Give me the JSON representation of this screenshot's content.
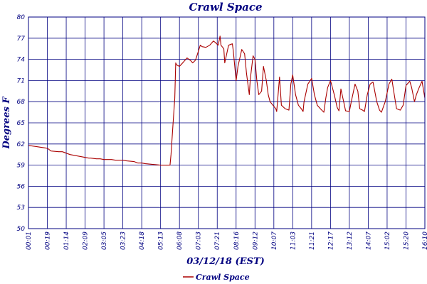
{
  "chart_data": {
    "type": "line",
    "title": "Crawl Space",
    "xlabel": "03/12/18 (EST)",
    "ylabel": "Degrees F",
    "ylim": [
      50,
      80
    ],
    "yticks": [
      50,
      53,
      56,
      59,
      62,
      65,
      68,
      71,
      74,
      77,
      80
    ],
    "xticks": [
      "00:01",
      "00:19",
      "01:14",
      "02:09",
      "03:05",
      "03:23",
      "04:18",
      "05:13",
      "06:08",
      "07:03",
      "07:21",
      "08:16",
      "09:12",
      "10:07",
      "11:03",
      "11:21",
      "12:17",
      "13:12",
      "14:07",
      "15:02",
      "15:20",
      "16:10"
    ],
    "grid": true,
    "legend_position": "bottom",
    "colors": {
      "line": "#aa0000",
      "grid": "#000080",
      "text": "#000080",
      "background": "#ffffff"
    },
    "series": [
      {
        "name": "Crawl Space",
        "x": [
          0.0,
          0.5,
          1.0,
          1.2,
          1.6,
          1.8,
          2.0,
          2.2,
          2.6,
          2.8,
          3.2,
          3.3,
          3.6,
          3.8,
          4.0,
          4.4,
          4.6,
          5.0,
          5.2,
          5.6,
          5.8,
          6.0,
          6.2,
          6.6,
          7.0,
          7.2,
          7.5,
          7.55,
          7.65,
          7.75,
          7.8,
          7.85,
          8.0,
          8.2,
          8.4,
          8.6,
          8.7,
          8.85,
          8.9,
          9.1,
          9.2,
          9.4,
          9.6,
          9.8,
          9.9,
          10.05,
          10.15,
          10.2,
          10.35,
          10.4,
          10.6,
          10.8,
          10.85,
          11.0,
          11.1,
          11.3,
          11.45,
          11.55,
          11.7,
          11.75,
          11.9,
          12.0,
          12.1,
          12.2,
          12.35,
          12.45,
          12.6,
          12.7,
          12.8,
          12.95,
          13.1,
          13.15,
          13.3,
          13.4,
          13.6,
          13.8,
          13.9,
          14.0,
          14.15,
          14.3,
          14.45,
          14.55,
          14.6,
          14.8,
          15.0,
          15.15,
          15.3,
          15.5,
          15.65,
          15.75,
          15.85,
          16.0,
          16.2,
          16.35,
          16.45,
          16.55,
          16.7,
          16.8,
          17.0,
          17.1,
          17.3,
          17.45,
          17.55,
          17.7,
          17.8,
          17.95,
          18.1,
          18.25,
          18.45,
          18.6,
          18.7,
          18.9,
          19.1,
          19.25,
          19.35,
          19.5,
          19.7,
          19.85,
          20.0,
          20.2,
          20.3,
          20.45,
          20.55,
          20.7,
          20.85,
          21.0
        ],
        "values": [
          61.8,
          61.6,
          61.4,
          61.0,
          60.9,
          60.9,
          60.7,
          60.5,
          60.3,
          60.2,
          60.0,
          60.0,
          59.9,
          59.9,
          59.8,
          59.8,
          59.7,
          59.7,
          59.6,
          59.5,
          59.3,
          59.3,
          59.2,
          59.1,
          59.0,
          59.0,
          59.0,
          60.5,
          64.5,
          68.5,
          73.5,
          73.2,
          73.0,
          73.6,
          74.2,
          73.8,
          73.5,
          73.9,
          74.3,
          76.0,
          75.8,
          75.7,
          76.0,
          76.6,
          76.4,
          76.0,
          77.3,
          76.0,
          75.5,
          73.5,
          76.0,
          76.2,
          75.2,
          71.0,
          73.0,
          75.4,
          74.8,
          72.0,
          69.0,
          71.2,
          74.5,
          74.0,
          71.0,
          69.0,
          69.5,
          73.0,
          71.0,
          69.0,
          68.0,
          67.5,
          67.0,
          66.6,
          71.5,
          67.5,
          67.0,
          66.8,
          70.5,
          71.8,
          69.0,
          67.5,
          67.0,
          66.6,
          68.0,
          70.5,
          71.3,
          69.0,
          67.5,
          66.9,
          66.5,
          68.5,
          70.0,
          71.0,
          69.0,
          67.2,
          66.7,
          69.8,
          68.0,
          66.7,
          66.6,
          68.0,
          70.5,
          69.5,
          67.0,
          66.8,
          66.6,
          69.0,
          70.5,
          70.8,
          68.0,
          66.8,
          66.5,
          68.0,
          70.5,
          71.2,
          69.5,
          67.0,
          66.8,
          67.5,
          70.3,
          70.9,
          70.0,
          68.0,
          69.0,
          70.0,
          70.9,
          68.5
        ]
      }
    ]
  }
}
